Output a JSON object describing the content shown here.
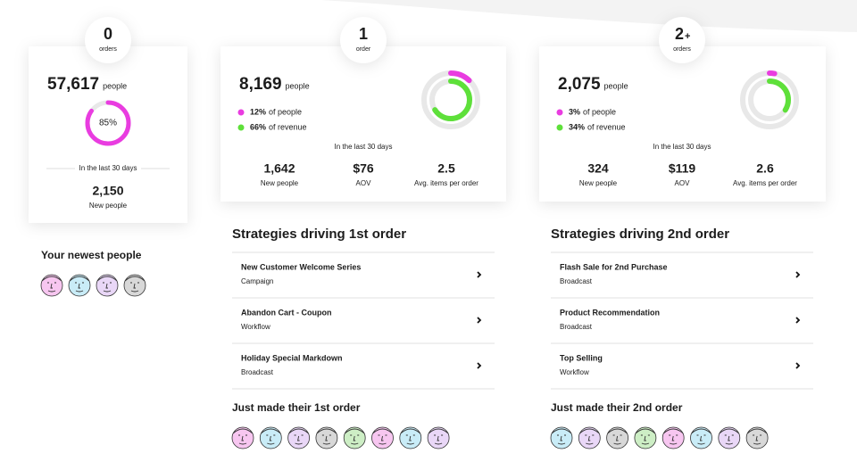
{
  "newest_title": "Your newest people",
  "segments": [
    {
      "badge": {
        "count": "0",
        "unit": "orders"
      },
      "people": "57,617",
      "people_unit": "people",
      "ring": {
        "value": 85,
        "label": "85%"
      },
      "period": "In the last 30 days",
      "stats": [
        {
          "value": "2,150",
          "label": "New people"
        }
      ]
    },
    {
      "badge": {
        "count": "1",
        "unit": "order"
      },
      "people": "8,169",
      "people_unit": "people",
      "people_share": {
        "value": 12,
        "label": "12%"
      },
      "people_share_text": "of people",
      "revenue_share": {
        "value": 66,
        "label": "66%"
      },
      "revenue_share_text": "of revenue",
      "period": "In the last 30 days",
      "stats": [
        {
          "value": "1,642",
          "label": "New people"
        },
        {
          "value": "$76",
          "label": "AOV"
        },
        {
          "value": "2.5",
          "label": "Avg. items per order"
        }
      ]
    },
    {
      "badge": {
        "count": "2",
        "suffix": "+",
        "unit": "orders"
      },
      "people": "2,075",
      "people_unit": "people",
      "people_share": {
        "value": 3,
        "label": "3%"
      },
      "people_share_text": "of people",
      "revenue_share": {
        "value": 34,
        "label": "34%"
      },
      "revenue_share_text": "of revenue",
      "period": "In the last 30 days",
      "stats": [
        {
          "value": "324",
          "label": "New people"
        },
        {
          "value": "$119",
          "label": "AOV"
        },
        {
          "value": "2.6",
          "label": "Avg. items per order"
        }
      ]
    }
  ],
  "strategies": [
    {
      "title": "Strategies driving 1st order",
      "items": [
        {
          "name": "New Customer Welcome Series",
          "kind": "Campaign"
        },
        {
          "name": "Abandon Cart - Coupon",
          "kind": "Workflow"
        },
        {
          "name": "Holiday Special Markdown",
          "kind": "Broadcast"
        }
      ],
      "recent_title": "Just made their 1st order"
    },
    {
      "title": "Strategies driving 2nd order",
      "items": [
        {
          "name": "Flash Sale for 2nd Purchase",
          "kind": "Broadcast"
        },
        {
          "name": "Product Recommendation",
          "kind": "Broadcast"
        },
        {
          "name": "Top Selling",
          "kind": "Workflow"
        }
      ],
      "recent_title": "Just made their 2nd order"
    }
  ]
}
